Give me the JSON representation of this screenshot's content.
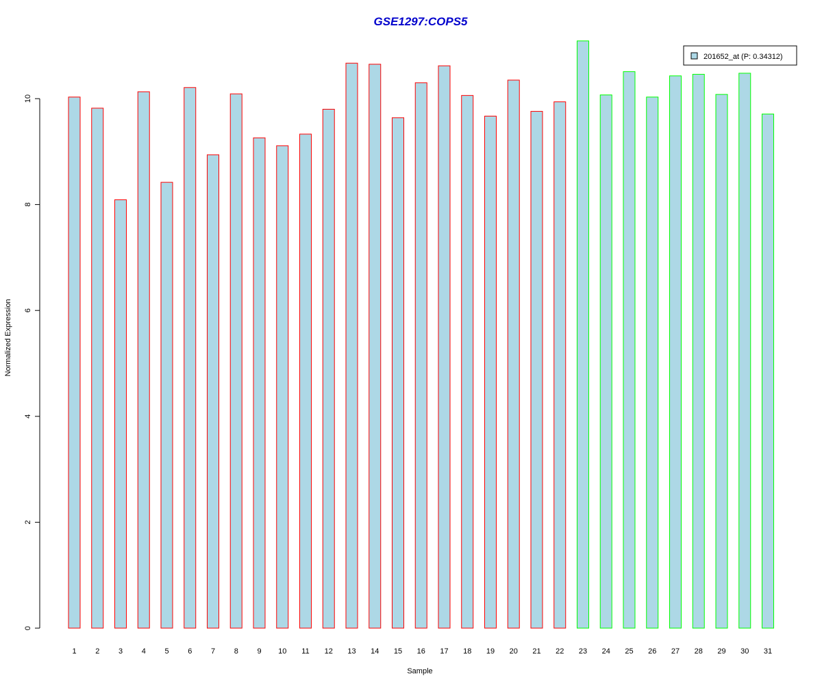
{
  "chart_data": {
    "type": "bar",
    "title": "GSE1297:COPS5",
    "xlabel": "Sample",
    "ylabel": "Normalized Expression",
    "categories": [
      "1",
      "2",
      "3",
      "4",
      "5",
      "6",
      "7",
      "8",
      "9",
      "10",
      "11",
      "12",
      "13",
      "14",
      "15",
      "16",
      "17",
      "18",
      "19",
      "20",
      "21",
      "22",
      "23",
      "24",
      "25",
      "26",
      "27",
      "28",
      "29",
      "30",
      "31"
    ],
    "values": [
      10.03,
      9.82,
      8.09,
      10.13,
      8.42,
      10.21,
      8.94,
      10.09,
      9.26,
      9.11,
      9.33,
      9.8,
      10.67,
      10.65,
      9.64,
      10.3,
      10.62,
      10.06,
      9.67,
      10.35,
      9.76,
      9.94,
      11.09,
      10.07,
      10.51,
      10.03,
      10.43,
      10.46,
      10.08,
      10.48,
      9.71
    ],
    "groups": [
      "red",
      "red",
      "red",
      "red",
      "red",
      "red",
      "red",
      "red",
      "red",
      "red",
      "red",
      "red",
      "red",
      "red",
      "red",
      "red",
      "red",
      "red",
      "red",
      "red",
      "red",
      "red",
      "green",
      "green",
      "green",
      "green",
      "green",
      "green",
      "green",
      "green",
      "green"
    ],
    "yticks": [
      0,
      2,
      4,
      6,
      8,
      10
    ],
    "ylim": [
      0,
      11.09
    ],
    "legend": {
      "label": "201652_at (P: 0.34312)",
      "position": "top-right"
    },
    "colors": {
      "bar_fill": "#add8e6",
      "group_red_border": "#ff0000",
      "group_green_border": "#00ff00",
      "title": "#0000cc",
      "axis": "#000000"
    },
    "grid": false
  }
}
